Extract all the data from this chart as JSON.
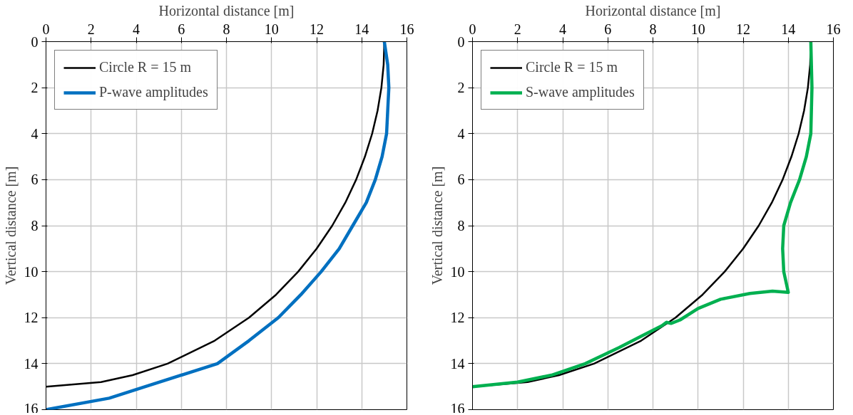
{
  "chart_data": [
    {
      "type": "line",
      "xlabel": "Horizontal distance [m]",
      "ylabel": "Vertical distance [m]",
      "xlim": [
        0,
        16
      ],
      "ylim": [
        16,
        0
      ],
      "xticks": [
        0,
        2,
        4,
        6,
        8,
        10,
        12,
        14,
        16
      ],
      "yticks": [
        0,
        2,
        4,
        6,
        8,
        10,
        12,
        14,
        16
      ],
      "grid": true,
      "legend": "top left",
      "series": [
        {
          "name": "Circle R = 15 m",
          "color": "#000000",
          "x": [
            15,
            14.97,
            14.87,
            14.7,
            14.46,
            14.14,
            13.75,
            13.27,
            12.69,
            12.0,
            11.18,
            10.2,
            9.0,
            7.48,
            5.39,
            3.84,
            2.44,
            0
          ],
          "values": [
            0,
            1,
            2,
            3,
            4,
            5,
            6,
            7,
            8,
            9,
            10,
            11,
            12,
            13,
            14,
            14.5,
            14.8,
            15
          ]
        },
        {
          "name": "P-wave amplitudes",
          "color": "#0070c0",
          "x": [
            15,
            15.15,
            15.2,
            15.15,
            15.1,
            14.9,
            14.6,
            14.2,
            13.6,
            13.0,
            12.2,
            11.3,
            10.3,
            9.0,
            7.6,
            4.4,
            2.8,
            0
          ],
          "values": [
            0,
            1,
            2,
            3,
            4,
            5,
            6,
            7,
            8,
            9,
            10,
            11,
            12,
            13,
            14,
            15,
            15.5,
            16
          ]
        }
      ]
    },
    {
      "type": "line",
      "xlabel": "Horizontal distance [m]",
      "ylabel": "Vertical distance [m]",
      "xlim": [
        0,
        16
      ],
      "ylim": [
        16,
        0
      ],
      "xticks": [
        0,
        2,
        4,
        6,
        8,
        10,
        12,
        14,
        16
      ],
      "yticks": [
        0,
        2,
        4,
        6,
        8,
        10,
        12,
        14,
        16
      ],
      "grid": true,
      "legend": "top left",
      "series": [
        {
          "name": "Circle R = 15 m",
          "color": "#000000",
          "x": [
            15,
            14.97,
            14.87,
            14.7,
            14.46,
            14.14,
            13.75,
            13.27,
            12.69,
            12.0,
            11.18,
            10.2,
            9.0,
            7.48,
            5.39,
            3.84,
            2.44,
            0
          ],
          "values": [
            0,
            1,
            2,
            3,
            4,
            5,
            6,
            7,
            8,
            9,
            10,
            11,
            12,
            13,
            14,
            14.5,
            14.8,
            15
          ]
        },
        {
          "name": "S-wave amplitudes",
          "color": "#00b050",
          "x": [
            15,
            15.05,
            15.0,
            14.8,
            14.5,
            14.1,
            13.8,
            13.75,
            13.8,
            14.0,
            13.3,
            12.3,
            11.0,
            10.0,
            9.2,
            8.8,
            8.6,
            8.4,
            7.5,
            6.5,
            5.0,
            3.5,
            2.0,
            0
          ],
          "values": [
            0,
            2,
            4,
            5,
            6,
            7,
            8,
            9,
            10,
            10.9,
            10.85,
            10.95,
            11.2,
            11.6,
            12.1,
            12.25,
            12.2,
            12.35,
            12.8,
            13.3,
            14.0,
            14.5,
            14.8,
            15
          ]
        }
      ]
    }
  ]
}
